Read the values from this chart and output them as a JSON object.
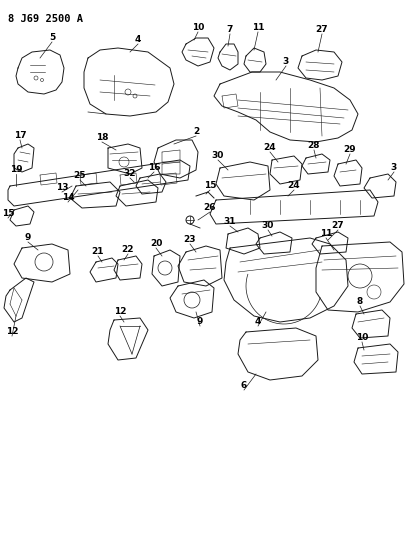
{
  "title": "8 J69 2500 A",
  "bg_color": "#ffffff",
  "line_color": "#1a1a1a",
  "label_color": "#000000",
  "fig_width": 4.14,
  "fig_height": 5.33,
  "dpi": 100,
  "lw": 0.7,
  "label_fontsize": 6.5
}
